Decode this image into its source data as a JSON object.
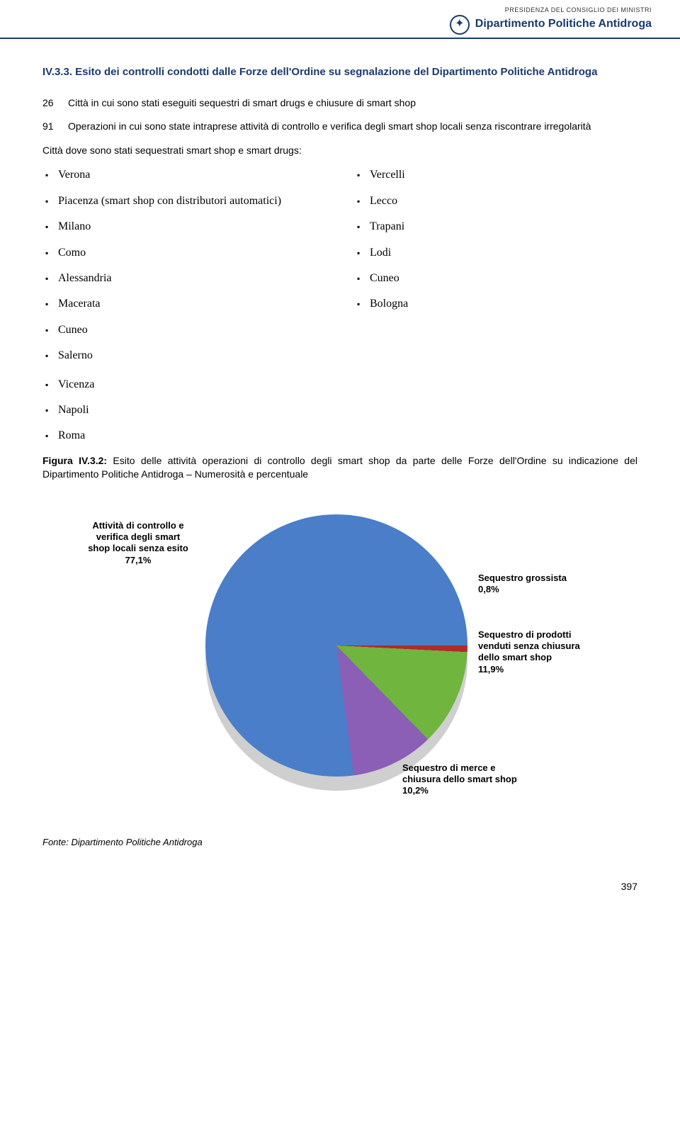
{
  "header": {
    "top": "PRESIDENZA DEL CONSIGLIO DEI MINISTRI",
    "title": "Dipartimento Politiche Antidroga"
  },
  "section_title": "IV.3.3. Esito dei controlli condotti dalle Forze dell'Ordine su segnalazione del Dipartimento Politiche Antidroga",
  "stats": [
    {
      "n": "26",
      "t": "Città in cui sono stati eseguiti sequestri di smart drugs e chiusure di smart shop"
    },
    {
      "n": "91",
      "t": "Operazioni in cui sono state intraprese attività di controllo e verifica degli smart shop locali senza riscontrare irregolarità"
    }
  ],
  "list_intro": "Città dove sono stati sequestrati smart shop e smart drugs:",
  "col1": [
    "Verona",
    "Piacenza (smart shop con distributori automatici)",
    "Milano",
    "Como",
    "Alessandria",
    "Macerata",
    "Cuneo",
    "Salerno"
  ],
  "col2": [
    "Vercelli",
    "Lecco",
    "Trapani",
    "Lodi",
    "Cuneo",
    "Bologna"
  ],
  "col_rest": [
    "Vicenza",
    "Napoli",
    "Roma"
  ],
  "figure": {
    "label": "Figura IV.3.2:",
    "text": " Esito delle attività operazioni di controllo degli smart shop da parte delle Forze dell'Ordine su indicazione del Dipartimento Politiche Antidroga – Numerosità e percentuale"
  },
  "chart": {
    "type": "pie",
    "background_color": "#ffffff",
    "slices": [
      {
        "label": "Attività di controllo e verifica degli smart shop locali senza esito",
        "pct": "77,1%",
        "value": 77.1,
        "color": "#4a7ec9"
      },
      {
        "label": "Sequestro grossista",
        "pct": "0,8%",
        "value": 0.8,
        "color": "#b22a2a"
      },
      {
        "label": "Sequestro di prodotti venduti senza chiusura dello smart shop",
        "pct": "11,9%",
        "value": 11.9,
        "color": "#6fb53e"
      },
      {
        "label": "Sequestro di merce e chiusura dello smart shop",
        "pct": "10,2%",
        "value": 10.2,
        "color": "#8a5fb5"
      }
    ],
    "label_fontsize": 13,
    "label_fontweight": "bold"
  },
  "source": "Fonte: Dipartimento Politiche Antidroga",
  "page_number": "397"
}
